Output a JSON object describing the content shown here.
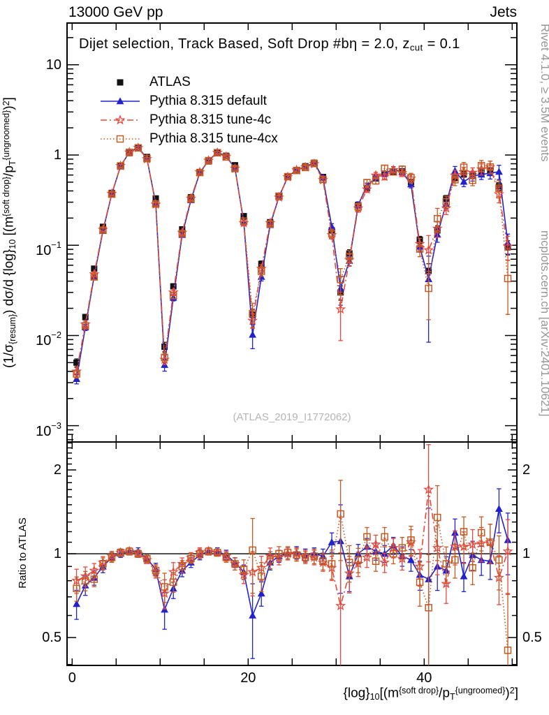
{
  "header": {
    "left": "13000 GeV pp",
    "right": "Jets"
  },
  "panel_title_segments": [
    {
      "t": "Dijet selection, Track Based, Soft Drop #bη = 2.0, z"
    },
    {
      "t": "cut",
      "s": "sub"
    },
    {
      "t": " = 0.1"
    }
  ],
  "side_notes": {
    "top": "Rivet 4.1.0, ≥ 3.5M events",
    "bottom": "mcplots.cern.ch [arXiv:2401.10621]"
  },
  "watermark": "(ATLAS_2019_I1772062)",
  "axes": {
    "y_label_segments": [
      {
        "t": "(1/σ"
      },
      {
        "t": "{resum}",
        "s": "sub"
      },
      {
        "t": ") dσ/d {log}"
      },
      {
        "t": "10",
        "s": "sub"
      },
      {
        "t": " [(m"
      },
      {
        "t": "{soft drop}",
        "s": "sup"
      },
      {
        "t": "/p"
      },
      {
        "t": "T",
        "s": "sub"
      },
      {
        "t": "{ungroomed}",
        "s": "sup"
      },
      {
        "t": ")"
      },
      {
        "t": "2",
        "s": "sup"
      },
      {
        "t": "]"
      }
    ],
    "x_label_segments": [
      {
        "t": "{log}"
      },
      {
        "t": "10",
        "s": "sub"
      },
      {
        "t": "[(m"
      },
      {
        "t": "{soft drop}",
        "s": "sup"
      },
      {
        "t": "/p"
      },
      {
        "t": "T",
        "s": "sub"
      },
      {
        "t": "{ungroomed}",
        "s": "sup"
      },
      {
        "t": ")"
      },
      {
        "t": "2",
        "s": "sup"
      },
      {
        "t": "]"
      }
    ],
    "y_tick_labels": [
      {
        "base": "10",
        "exp": ""
      },
      {
        "base": "1",
        "exp": ""
      },
      {
        "base": "10",
        "exp": "−1"
      },
      {
        "base": "10",
        "exp": "−2"
      },
      {
        "base": "10",
        "exp": "−3"
      }
    ],
    "x_tick_labels": [
      "0",
      "20",
      "40"
    ],
    "ratio_label": "Ratio to ATLAS",
    "ratio_tick_labels": [
      "2",
      "1",
      "0.5"
    ]
  },
  "colors": {
    "data": "#111111",
    "pythia_default": "#2222cc",
    "tune_4c": "#e5493d",
    "tune_4cx": "#c35a24",
    "note_gray": "#969696",
    "watermark_gray": "#b4b4b4"
  },
  "chart_data": {
    "type": "line",
    "title": "Dijet selection, Track Based, Soft Drop #bη = 2.0, z_cut = 0.1",
    "xlabel": "log10[(m^{soft drop}/p_T^{ungroomed})^2]",
    "ylabel": "(1/σ_{resum}) dσ/d log10[(m^{soft drop}/p_T^{ungroomed})^2]",
    "ratio_ylabel": "Ratio to ATLAS",
    "ratio_reference": "ATLAS",
    "legend_position": "top-left",
    "grid": false,
    "xlim": [
      -0.58,
      50.53
    ],
    "main_ylim": [
      0.00066,
      29
    ],
    "main_yscale": "log",
    "ratio_ylim": [
      0.397,
      2.52
    ],
    "ratio_yscale": "log",
    "x_major_tick_step": 5,
    "x_labeled_ticks": [
      0,
      20,
      40
    ],
    "y_decade_ticks": [
      10,
      1,
      0.1,
      0.01,
      0.001
    ],
    "ratio_major_ticks": [
      2,
      1,
      0.5
    ],
    "x": [
      0.5,
      1.5,
      2.5,
      3.5,
      4.5,
      5.5,
      6.5,
      7.5,
      8.5,
      9.5,
      10.5,
      11.5,
      12.5,
      13.5,
      14.5,
      15.5,
      16.5,
      17.5,
      18.5,
      19.5,
      20.5,
      21.5,
      22.5,
      23.5,
      24.5,
      25.5,
      26.5,
      27.5,
      28.5,
      29.5,
      30.5,
      31.5,
      32.5,
      33.5,
      34.5,
      35.5,
      36.5,
      37.5,
      38.5,
      39.5,
      40.5,
      41.5,
      42.5,
      43.5,
      44.5,
      45.5,
      46.5,
      47.5,
      48.5,
      49.5
    ],
    "series": [
      {
        "name": "ATLAS",
        "role": "data",
        "color": "#111111",
        "marker": "square-filled",
        "line": "none",
        "values": [
          0.005,
          0.016,
          0.055,
          0.16,
          0.38,
          0.75,
          1.05,
          1.2,
          0.95,
          0.33,
          0.0075,
          0.035,
          0.15,
          0.34,
          0.64,
          0.85,
          1.05,
          0.98,
          0.77,
          0.21,
          0.017,
          0.062,
          0.18,
          0.35,
          0.57,
          0.68,
          0.75,
          0.82,
          0.57,
          0.146,
          0.03,
          0.081,
          0.28,
          0.43,
          0.55,
          0.62,
          0.65,
          0.66,
          0.5,
          0.115,
          0.052,
          0.146,
          0.33,
          0.56,
          0.61,
          0.59,
          0.64,
          0.67,
          0.45,
          0.095
        ],
        "err_frac": [
          0.1,
          0.07,
          0.05,
          0.04,
          0.04,
          0.03,
          0.03,
          0.03,
          0.03,
          0.04,
          0.12,
          0.07,
          0.05,
          0.04,
          0.03,
          0.03,
          0.03,
          0.03,
          0.04,
          0.05,
          0.15,
          0.08,
          0.05,
          0.04,
          0.04,
          0.04,
          0.04,
          0.04,
          0.05,
          0.07,
          0.18,
          0.1,
          0.06,
          0.05,
          0.05,
          0.05,
          0.05,
          0.05,
          0.06,
          0.09,
          0.2,
          0.12,
          0.08,
          0.07,
          0.07,
          0.07,
          0.08,
          0.08,
          0.1,
          0.18
        ]
      },
      {
        "name": "Pythia 8.315 default",
        "role": "mc",
        "color": "#2222cc",
        "marker": "triangle-filled",
        "line": "solid",
        "ratio_to_data": [
          0.66,
          0.77,
          0.82,
          0.9,
          0.97,
          1.0,
          1.02,
          1.02,
          0.96,
          0.88,
          0.63,
          0.75,
          0.87,
          0.93,
          0.99,
          1.02,
          1.02,
          0.99,
          0.93,
          0.86,
          0.6,
          0.72,
          0.93,
          0.98,
          1.0,
          1.01,
          0.99,
          1.0,
          0.98,
          1.1,
          1.11,
          0.83,
          1.0,
          1.06,
          1.02,
          1.0,
          1.07,
          0.98,
          0.95,
          0.84,
          0.81,
          0.9,
          0.87,
          1.19,
          0.83,
          0.99,
          0.95,
          0.94,
          1.45,
          1.12
        ],
        "err_frac": [
          0.12,
          0.08,
          0.06,
          0.05,
          0.04,
          0.03,
          0.03,
          0.03,
          0.03,
          0.05,
          0.15,
          0.08,
          0.05,
          0.04,
          0.04,
          0.03,
          0.03,
          0.04,
          0.04,
          0.06,
          0.3,
          0.1,
          0.06,
          0.05,
          0.05,
          0.05,
          0.05,
          0.05,
          0.06,
          0.08,
          0.35,
          0.12,
          0.08,
          0.07,
          0.07,
          0.07,
          0.07,
          0.08,
          0.09,
          0.12,
          0.8,
          0.18,
          0.12,
          0.12,
          0.12,
          0.12,
          0.12,
          0.14,
          0.18,
          0.25
        ]
      },
      {
        "name": "Pythia 8.315 tune-4c",
        "role": "mc",
        "color": "#e5493d",
        "marker": "star-open",
        "line": "dashdot",
        "ratio_to_data": [
          0.8,
          0.83,
          0.87,
          0.93,
          0.98,
          1.01,
          1.02,
          1.0,
          0.95,
          0.86,
          0.72,
          0.86,
          0.92,
          0.97,
          1.01,
          1.02,
          1.01,
          0.98,
          0.92,
          0.84,
          0.86,
          0.89,
          0.98,
          0.97,
          1.0,
          1.0,
          0.98,
          0.97,
          0.93,
          0.89,
          0.65,
          0.85,
          0.92,
          0.97,
          1.08,
          0.93,
          1.05,
          0.96,
          1.1,
          0.9,
          1.7,
          1.05,
          0.78,
          1.06,
          1.06,
          1.08,
          1.09,
          1.1,
          0.82,
          1.02
        ],
        "err_frac": [
          0.1,
          0.08,
          0.06,
          0.05,
          0.04,
          0.03,
          0.03,
          0.03,
          0.03,
          0.05,
          0.12,
          0.08,
          0.05,
          0.04,
          0.04,
          0.03,
          0.03,
          0.04,
          0.05,
          0.07,
          0.18,
          0.1,
          0.07,
          0.06,
          0.05,
          0.05,
          0.05,
          0.06,
          0.07,
          0.1,
          0.55,
          0.15,
          0.1,
          0.08,
          0.08,
          0.08,
          0.08,
          0.09,
          0.11,
          0.15,
          0.45,
          0.2,
          0.15,
          0.14,
          0.13,
          0.13,
          0.14,
          0.16,
          0.2,
          0.3
        ]
      },
      {
        "name": "Pythia 8.315 tune-4cx",
        "role": "mc",
        "color": "#c35a24",
        "marker": "square-open",
        "line": "dotted",
        "ratio_to_data": [
          0.75,
          0.8,
          0.81,
          0.92,
          0.97,
          1.01,
          1.02,
          1.0,
          0.96,
          0.87,
          0.76,
          0.79,
          0.9,
          0.96,
          1.0,
          1.02,
          1.01,
          0.97,
          0.92,
          0.88,
          1.03,
          0.83,
          0.95,
          1.0,
          1.01,
          0.99,
          0.97,
          0.98,
          0.94,
          0.92,
          1.39,
          0.93,
          0.95,
          1.15,
          0.94,
          1.15,
          1.0,
          1.05,
          1.12,
          0.79,
          0.64,
          1.35,
          0.92,
          0.95,
          1.2,
          0.89,
          1.19,
          1.1,
          0.95,
          0.45
        ],
        "err_frac": [
          0.1,
          0.08,
          0.06,
          0.05,
          0.04,
          0.03,
          0.03,
          0.03,
          0.03,
          0.05,
          0.12,
          0.08,
          0.05,
          0.04,
          0.04,
          0.03,
          0.03,
          0.04,
          0.05,
          0.08,
          0.3,
          0.12,
          0.07,
          0.06,
          0.05,
          0.05,
          0.05,
          0.06,
          0.07,
          0.12,
          0.32,
          0.15,
          0.1,
          0.08,
          0.08,
          0.08,
          0.08,
          0.09,
          0.12,
          0.18,
          0.55,
          0.3,
          0.15,
          0.14,
          0.13,
          0.13,
          0.14,
          0.16,
          0.22,
          0.6
        ]
      }
    ]
  }
}
